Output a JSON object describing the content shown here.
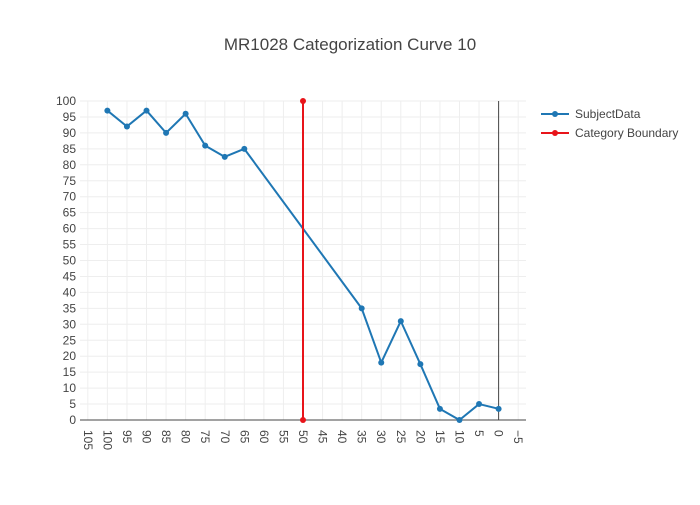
{
  "chart_data": {
    "type": "line",
    "title": "MR1028 Categorization Curve 10",
    "xlabel": "",
    "ylabel": "",
    "x_axis": {
      "reversed": true,
      "range": [
        107,
        -7
      ],
      "ticks": [
        105,
        100,
        95,
        90,
        85,
        80,
        75,
        70,
        65,
        60,
        55,
        50,
        45,
        40,
        35,
        30,
        25,
        20,
        15,
        10,
        5,
        0,
        -5
      ],
      "tick_labels": [
        "105",
        "100",
        "95",
        "90",
        "85",
        "80",
        "75",
        "70",
        "65",
        "60",
        "55",
        "50",
        "45",
        "40",
        "35",
        "30",
        "25",
        "20",
        "15",
        "10",
        "5",
        "0",
        "−5"
      ]
    },
    "y_axis": {
      "range": [
        0,
        100
      ],
      "ticks": [
        0,
        5,
        10,
        15,
        20,
        25,
        30,
        35,
        40,
        45,
        50,
        55,
        60,
        65,
        70,
        75,
        80,
        85,
        90,
        95,
        100
      ],
      "tick_labels": [
        "0",
        "5",
        "10",
        "15",
        "20",
        "25",
        "30",
        "35",
        "40",
        "45",
        "50",
        "55",
        "60",
        "65",
        "70",
        "75",
        "80",
        "85",
        "90",
        "95",
        "100"
      ]
    },
    "grid": true,
    "legend_position": "top-right",
    "series": [
      {
        "name": "SubjectData",
        "color": "#1f77b4",
        "x": [
          100,
          95,
          90,
          85,
          80,
          75,
          70,
          65,
          35,
          30,
          25,
          20,
          15,
          10,
          5,
          0
        ],
        "y": [
          97,
          92,
          97,
          90,
          96,
          86,
          82.5,
          85,
          35,
          18,
          31,
          17.5,
          3.5,
          0,
          5,
          3.5
        ]
      },
      {
        "name": "Category Boundary",
        "color": "#e8141a",
        "x": [
          50,
          50
        ],
        "y": [
          0,
          100
        ]
      }
    ],
    "zero_line_x": 0
  }
}
